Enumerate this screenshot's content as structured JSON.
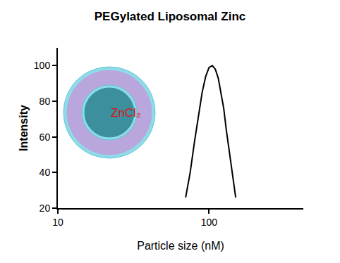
{
  "chart_data": {
    "type": "line",
    "title": "PEGylated Liposomal Zinc",
    "x_label": "Particle size (nM)",
    "y_label": "Intensity",
    "x": [
      70,
      75,
      80,
      85,
      90,
      95,
      100,
      105,
      110,
      115,
      120,
      125,
      130,
      140,
      150
    ],
    "values": [
      26,
      40,
      57,
      72,
      85,
      94,
      99,
      100,
      98,
      93,
      85,
      76,
      64,
      45,
      26
    ],
    "color": "#000000",
    "xlim": [
      10,
      420
    ],
    "ylim": [
      20,
      110
    ],
    "xticks": [
      10,
      100
    ],
    "yticks": [
      20,
      40,
      60,
      80,
      100
    ],
    "log": "x",
    "grid": false,
    "annotations": [
      "ZnCl₂"
    ]
  }
}
